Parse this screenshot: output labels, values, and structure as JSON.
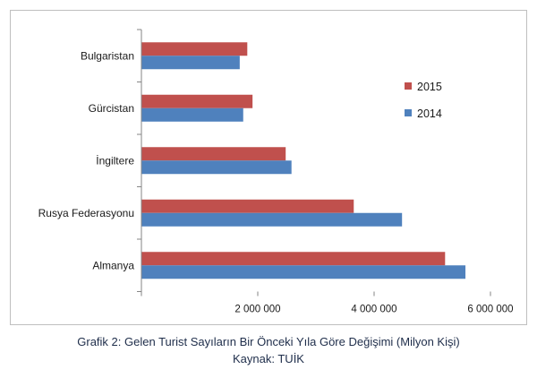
{
  "chart_data": {
    "type": "bar",
    "orientation": "horizontal",
    "categories": [
      "Bulgaristan",
      "Gürcistan",
      "İngiltere",
      "Rusya Federasyonu",
      "Almanya"
    ],
    "series": [
      {
        "name": "2015",
        "color": "#c0504d",
        "values": [
          1820000,
          1910000,
          2480000,
          3650000,
          5220000
        ]
      },
      {
        "name": "2014",
        "color": "#4f81bd",
        "values": [
          1690000,
          1750000,
          2580000,
          4480000,
          5570000
        ]
      }
    ],
    "xlim": [
      0,
      6000000
    ],
    "xticks": [
      {
        "value": 2000000,
        "label": "2 000 000"
      },
      {
        "value": 4000000,
        "label": "4 000 000"
      },
      {
        "value": 6000000,
        "label": "6 000 000"
      }
    ],
    "grid": false,
    "legend_position": "right"
  },
  "caption": {
    "line1": "Grafik 2: Gelen Turist Sayıların Bir Önceki Yıla Göre Değişimi (Milyon Kişi)",
    "line2": "Kaynak: TUİK"
  }
}
